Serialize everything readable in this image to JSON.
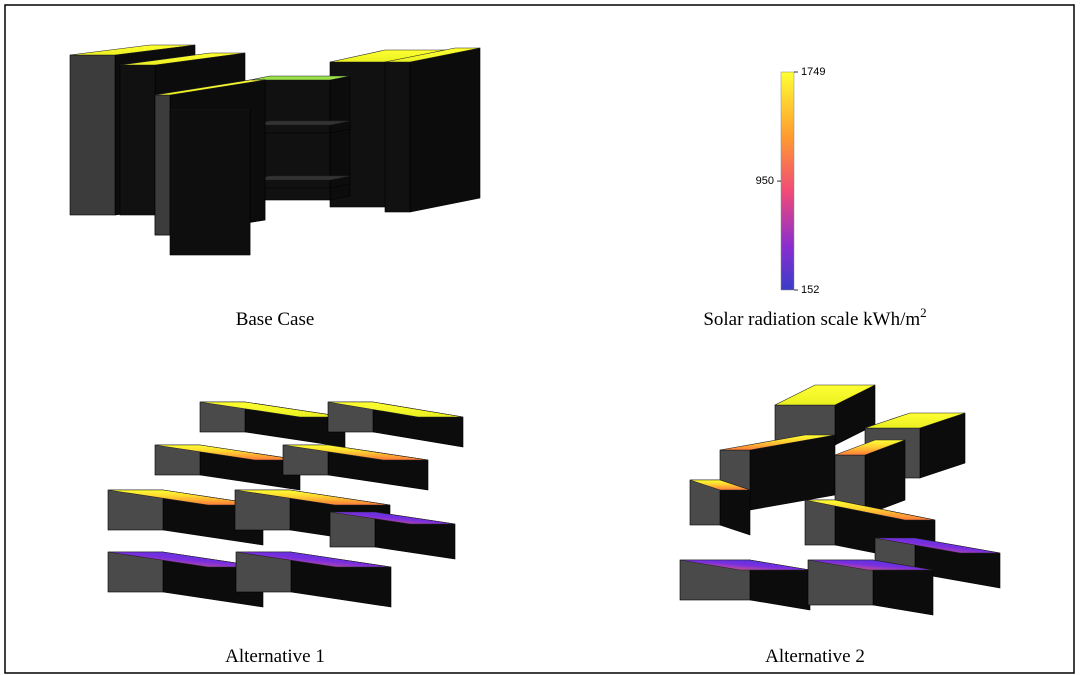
{
  "panels": [
    {
      "caption": "Base Case"
    },
    {
      "caption": "Alternative 1"
    },
    {
      "caption": "Alternative 2"
    }
  ],
  "color_scale": {
    "title": "Solar radiation scale kWh/m",
    "title_superscript": "2",
    "range": [
      152,
      1749
    ],
    "ticks": [
      1749,
      950,
      152
    ]
  }
}
